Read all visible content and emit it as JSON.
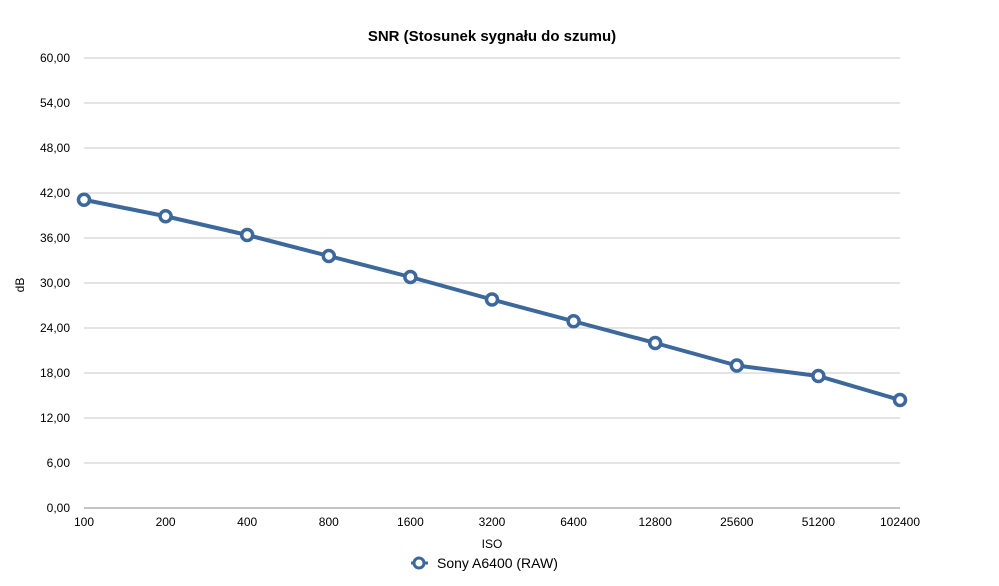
{
  "chart_data": {
    "type": "line",
    "title": "SNR (Stosunek sygnału do szumu)",
    "xlabel": "ISO",
    "ylabel": "dB",
    "categories": [
      "100",
      "200",
      "400",
      "800",
      "1600",
      "3200",
      "6400",
      "12800",
      "25600",
      "51200",
      "102400"
    ],
    "y_ticks": [
      "0,00",
      "6,00",
      "12,00",
      "18,00",
      "24,00",
      "30,00",
      "36,00",
      "42,00",
      "48,00",
      "54,00",
      "60,00"
    ],
    "ylim": [
      0,
      60
    ],
    "grid": true,
    "legend_position": "bottom",
    "series": [
      {
        "name": "Sony A6400 (RAW)",
        "color": "#3d689c",
        "values": [
          41.1,
          38.9,
          36.4,
          33.6,
          30.8,
          27.8,
          24.9,
          22.0,
          19.0,
          17.6,
          14.4
        ]
      }
    ]
  }
}
